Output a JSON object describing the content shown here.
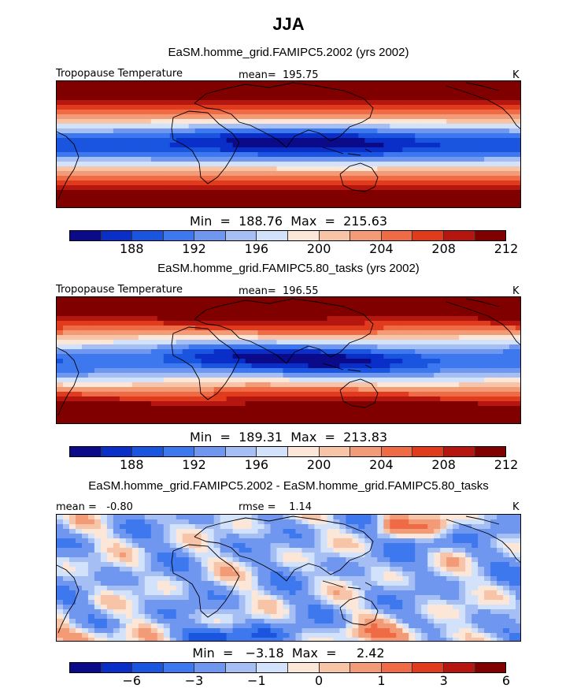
{
  "title": "JJA",
  "colors": {
    "palette": [
      "#0b0b8a",
      "#0a2fc8",
      "#1a55e0",
      "#3d78ee",
      "#7097ef",
      "#a5bff5",
      "#d2e2fb",
      "#fbe6d7",
      "#f8c4a8",
      "#f39a76",
      "#ee6b46",
      "#e13b1d",
      "#b5160f",
      "#800000"
    ],
    "coastline": "#000000"
  },
  "panels": [
    {
      "title": "EaSM.homme_grid.FAMIPC5.2002 (yrs 2002)",
      "field": "Tropopause Temperature",
      "stat": "mean=  195.75",
      "unit": "K",
      "minmax": "Min  =  188.76  Max  =  215.63",
      "ticks": [
        "188",
        "192",
        "196",
        "200",
        "204",
        "208",
        "212"
      ],
      "field_style": "absolute"
    },
    {
      "title": "EaSM.homme_grid.FAMIPC5.80_tasks (yrs 2002)",
      "field": "Tropopause Temperature",
      "stat": "mean=  196.55",
      "unit": "K",
      "minmax": "Min  =  189.31  Max  =  213.83",
      "ticks": [
        "188",
        "192",
        "196",
        "200",
        "204",
        "208",
        "212"
      ],
      "field_style": "absolute"
    },
    {
      "title": "EaSM.homme_grid.FAMIPC5.2002 - EaSM.homme_grid.FAMIPC5.80_tasks",
      "field": "mean =   -0.80",
      "stat": "rmse =    1.14",
      "unit": "K",
      "minmax": "Min  =   −3.18  Max  =     2.42",
      "ticks": [
        "−6",
        "−3",
        "−1",
        "0",
        "1",
        "3",
        "6"
      ],
      "field_style": "difference"
    }
  ]
}
